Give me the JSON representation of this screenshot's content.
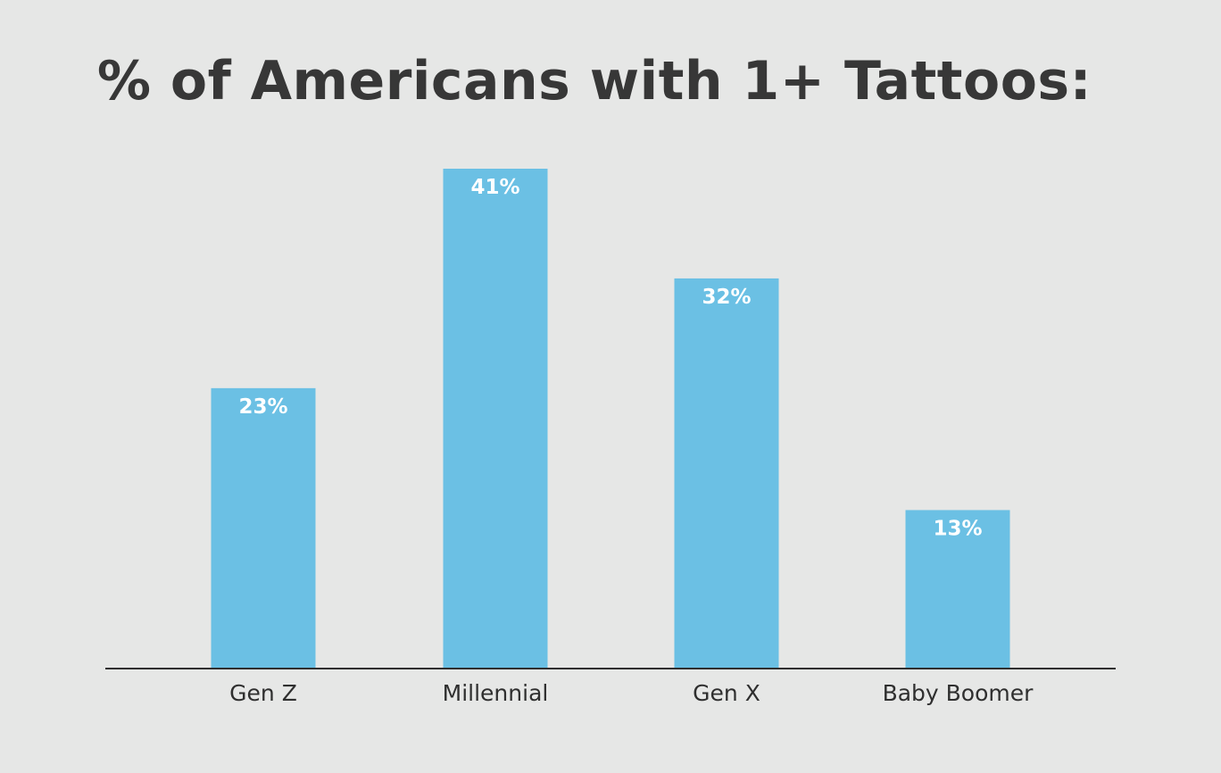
{
  "chart_data": {
    "type": "bar",
    "title": "% of Americans with 1+ Tattoos:",
    "xlabel": "",
    "ylabel": "",
    "categories": [
      "Gen Z",
      "Millennial",
      "Gen X",
      "Baby Boomer"
    ],
    "values": [
      23,
      41,
      32,
      13
    ],
    "value_labels": [
      "23%",
      "41%",
      "32%",
      "13%"
    ],
    "ylim": [
      0,
      45
    ],
    "grid": false,
    "legend": "none",
    "bar_color": "#6bc0e4",
    "axis_color": "#2f2f2f",
    "background_color": "#e6e7e6",
    "title_color": "#373737"
  }
}
